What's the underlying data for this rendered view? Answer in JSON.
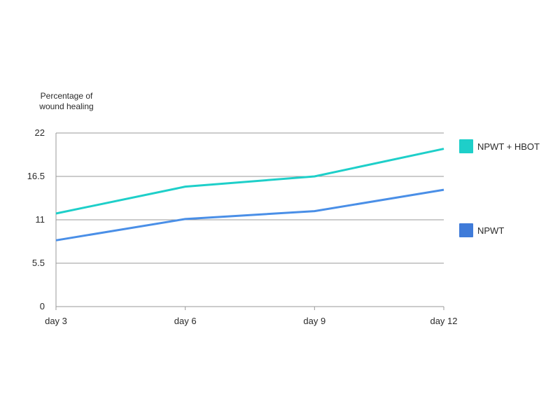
{
  "chart_data": {
    "type": "line",
    "ylabel": "Percentage of wound healing",
    "xlabel": "",
    "categories": [
      "day 3",
      "day 6",
      "day 9",
      "day 12"
    ],
    "yticks": [
      "0",
      "5.5",
      "11",
      "16.5",
      "22"
    ],
    "ylim": [
      0,
      22
    ],
    "grid": true,
    "legend_position": "right",
    "series": [
      {
        "name": "NPWT + HBOT",
        "color": "#1ECFC9",
        "values": [
          11.8,
          15.2,
          16.5,
          20.0
        ]
      },
      {
        "name": "NPWT",
        "color": "#4A8FE7",
        "swatch_color": "#3F7BD9",
        "values": [
          8.4,
          11.1,
          12.1,
          14.8
        ]
      }
    ]
  }
}
